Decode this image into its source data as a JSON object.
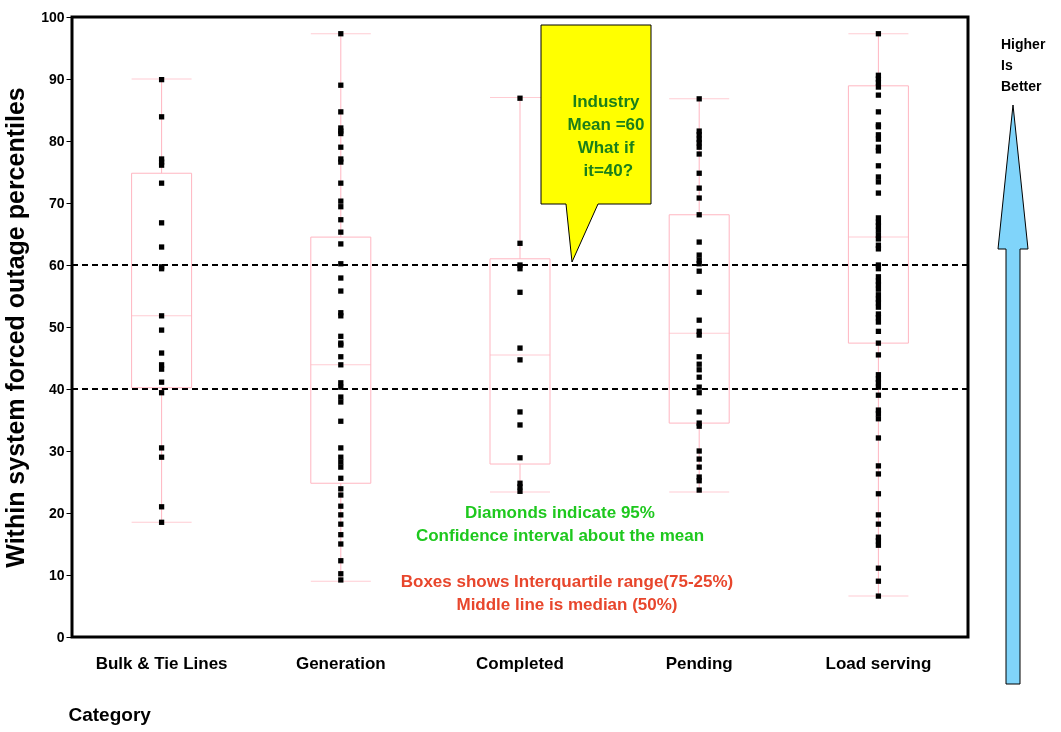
{
  "chart_data": {
    "type": "box",
    "categories": [
      "Bulk & Tie Lines",
      "Generation",
      "Completed",
      "Pending",
      "Load serving"
    ],
    "xlabel": "Category",
    "ylabel": "Within system forced outage percentiles",
    "ylim": [
      0,
      100
    ],
    "yticks": [
      0,
      10,
      20,
      30,
      40,
      50,
      60,
      70,
      80,
      90,
      100
    ],
    "ref_lines": [
      {
        "axis": "y",
        "value": 60,
        "color": "#000000",
        "line_style": "dashed"
      },
      {
        "axis": "y",
        "value": 40,
        "color": "#000000",
        "line_style": "dashed"
      }
    ],
    "series": [
      {
        "type": "box",
        "color": "#ffb6c1",
        "boxes": [
          {
            "low": 18.5,
            "q1": 40.2,
            "median": 51.8,
            "q3": 74.8,
            "high": 90
          },
          {
            "low": 9.0,
            "q1": 24.8,
            "median": 43.9,
            "q3": 64.5,
            "high": 97.3
          },
          {
            "low": 23.4,
            "q1": 27.9,
            "median": 45.5,
            "q3": 61.0,
            "high": 87.0
          },
          {
            "low": 23.4,
            "q1": 34.5,
            "median": 49.0,
            "q3": 68.1,
            "high": 86.8
          },
          {
            "low": 6.6,
            "q1": 47.4,
            "median": 64.5,
            "q3": 88.9,
            "high": 97.3
          }
        ]
      },
      {
        "type": "scatter",
        "color": "#000000",
        "marker": "square",
        "x": [
          "Bulk & Tie Lines",
          "Bulk & Tie Lines",
          "Bulk & Tie Lines",
          "Bulk & Tie Lines",
          "Bulk & Tie Lines",
          "Bulk & Tie Lines",
          "Bulk & Tie Lines",
          "Bulk & Tie Lines",
          "Bulk & Tie Lines",
          "Bulk & Tie Lines",
          "Bulk & Tie Lines",
          "Bulk & Tie Lines",
          "Bulk & Tie Lines",
          "Bulk & Tie Lines",
          "Bulk & Tie Lines",
          "Bulk & Tie Lines",
          "Bulk & Tie Lines",
          "Bulk & Tie Lines",
          "Bulk & Tie Lines",
          "Bulk & Tie Lines",
          "Bulk & Tie Lines",
          "Generation",
          "Generation",
          "Generation",
          "Generation",
          "Generation",
          "Generation",
          "Generation",
          "Generation",
          "Generation",
          "Generation",
          "Generation",
          "Generation",
          "Generation",
          "Generation",
          "Generation",
          "Generation",
          "Generation",
          "Generation",
          "Generation",
          "Generation",
          "Generation",
          "Generation",
          "Generation",
          "Generation",
          "Generation",
          "Generation",
          "Generation",
          "Generation",
          "Generation",
          "Generation",
          "Generation",
          "Generation",
          "Generation",
          "Generation",
          "Generation",
          "Generation",
          "Generation",
          "Generation",
          "Generation",
          "Generation",
          "Generation",
          "Generation",
          "Generation",
          "Generation",
          "Generation",
          "Completed",
          "Completed",
          "Completed",
          "Completed",
          "Completed",
          "Completed",
          "Completed",
          "Completed",
          "Completed",
          "Completed",
          "Completed",
          "Completed",
          "Completed",
          "Pending",
          "Pending",
          "Pending",
          "Pending",
          "Pending",
          "Pending",
          "Pending",
          "Pending",
          "Pending",
          "Pending",
          "Pending",
          "Pending",
          "Pending",
          "Pending",
          "Pending",
          "Pending",
          "Pending",
          "Pending",
          "Pending",
          "Pending",
          "Pending",
          "Pending",
          "Pending",
          "Pending",
          "Pending",
          "Pending",
          "Pending",
          "Pending",
          "Pending",
          "Pending",
          "Pending",
          "Pending",
          "Pending",
          "Pending",
          "Pending",
          "Load serving",
          "Load serving",
          "Load serving",
          "Load serving",
          "Load serving",
          "Load serving",
          "Load serving",
          "Load serving",
          "Load serving",
          "Load serving",
          "Load serving",
          "Load serving",
          "Load serving",
          "Load serving",
          "Load serving",
          "Load serving",
          "Load serving",
          "Load serving",
          "Load serving",
          "Load serving",
          "Load serving",
          "Load serving",
          "Load serving",
          "Load serving",
          "Load serving",
          "Load serving",
          "Load serving",
          "Load serving",
          "Load serving",
          "Load serving",
          "Load serving",
          "Load serving",
          "Load serving",
          "Load serving",
          "Load serving",
          "Load serving",
          "Load serving",
          "Load serving",
          "Load serving",
          "Load serving",
          "Load serving",
          "Load serving",
          "Load serving",
          "Load serving",
          "Load serving",
          "Load serving",
          "Load serving",
          "Load serving",
          "Load serving",
          "Load serving",
          "Load serving",
          "Load serving",
          "Load serving",
          "Load serving",
          "Load serving",
          "Load serving",
          "Load serving",
          "Load serving",
          "Load serving",
          "Load serving",
          "Load serving"
        ],
        "values": [
          89.9,
          83.9,
          77.1,
          76.6,
          76.1,
          73.2,
          66.8,
          62.9,
          59.7,
          59.4,
          51.8,
          49.5,
          45.8,
          43.9,
          43.2,
          41.1,
          39.4,
          30.5,
          29.0,
          21.0,
          18.5,
          97.3,
          89.0,
          84.7,
          82.1,
          81.6,
          81.2,
          79.0,
          77.1,
          76.6,
          73.2,
          70.3,
          69.4,
          67.3,
          65.3,
          63.4,
          60.2,
          57.9,
          55.8,
          52.3,
          51.8,
          48.5,
          47.4,
          47.1,
          45.2,
          43.9,
          41.0,
          40.3,
          38.7,
          37.9,
          34.8,
          30.5,
          29.0,
          28.2,
          27.4,
          25.6,
          23.9,
          22.9,
          21.1,
          19.7,
          18.2,
          16.5,
          15.0,
          12.3,
          10.2,
          9.2,
          86.9,
          63.5,
          60.0,
          59.4,
          55.6,
          46.6,
          44.7,
          36.3,
          34.2,
          28.9,
          24.8,
          24.2,
          23.5,
          86.8,
          81.6,
          81.0,
          80.3,
          79.7,
          79.0,
          77.9,
          74.8,
          72.4,
          70.8,
          68.1,
          63.7,
          61.6,
          60.8,
          60.2,
          59.0,
          55.6,
          51.1,
          49.3,
          48.7,
          45.2,
          44.0,
          43.1,
          41.9,
          40.3,
          39.4,
          36.3,
          34.5,
          34.0,
          30.0,
          28.7,
          27.4,
          25.8,
          25.2,
          23.7,
          97.3,
          90.6,
          90.0,
          89.4,
          88.7,
          87.4,
          84.7,
          82.6,
          82.3,
          81.0,
          80.3,
          79.0,
          78.4,
          76.0,
          74.2,
          73.4,
          71.6,
          67.6,
          66.9,
          66.3,
          65.6,
          64.8,
          64.2,
          63.2,
          62.6,
          60.0,
          59.4,
          58.1,
          57.4,
          56.8,
          56.1,
          55.2,
          54.5,
          53.9,
          53.2,
          52.1,
          51.5,
          50.8,
          49.3,
          47.4,
          45.5,
          42.3,
          41.6,
          41.0,
          40.3,
          39.0,
          36.6,
          36.0,
          35.2,
          32.1,
          27.6,
          26.3,
          23.1,
          19.7,
          18.2,
          16.1,
          15.5,
          14.8,
          11.1,
          9.0,
          6.6
        ]
      }
    ],
    "annotations": [
      "Industry\nMean =60\nWhat if\n it=40?",
      "Diamonds indicate 95%\nConfidence interval about the mean",
      "Boxes shows Interquartile range(75-25%)\nMiddle line is median (50%)",
      "Higher\nIs\nBetter"
    ]
  }
}
